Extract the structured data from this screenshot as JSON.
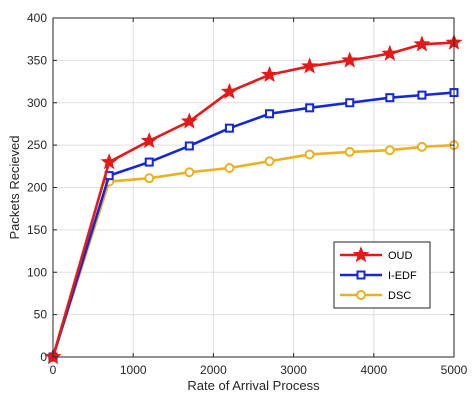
{
  "chart_data": {
    "type": "line",
    "xlabel": "Rate of Arrival Process",
    "ylabel": "Packets Recieved",
    "xlim": [
      0,
      5000
    ],
    "ylim": [
      0,
      400
    ],
    "xticks": [
      0,
      1000,
      2000,
      3000,
      4000,
      5000
    ],
    "yticks": [
      0,
      50,
      100,
      150,
      200,
      250,
      300,
      350,
      400
    ],
    "grid": true,
    "legend_position": "lower-right",
    "series": [
      {
        "name": "OUD",
        "color": "#e41a1a",
        "marker": "star",
        "x": [
          0,
          700,
          1200,
          1700,
          2200,
          2700,
          3200,
          3700,
          4200,
          4600,
          5000
        ],
        "y": [
          0,
          230,
          255,
          278,
          313,
          333,
          343,
          350,
          358,
          369,
          371
        ]
      },
      {
        "name": "I-EDF",
        "color": "#1428d8",
        "marker": "square",
        "x": [
          0,
          700,
          1200,
          1700,
          2200,
          2700,
          3200,
          3700,
          4200,
          4600,
          5000
        ],
        "y": [
          0,
          214,
          230,
          249,
          270,
          287,
          294,
          300,
          306,
          309,
          312
        ]
      },
      {
        "name": "DSC",
        "color": "#edb120",
        "marker": "circle",
        "x": [
          0,
          700,
          1200,
          1700,
          2200,
          2700,
          3200,
          3700,
          4200,
          4600,
          5000
        ],
        "y": [
          0,
          207,
          211,
          218,
          223,
          231,
          239,
          242,
          244,
          248,
          250
        ]
      }
    ]
  }
}
